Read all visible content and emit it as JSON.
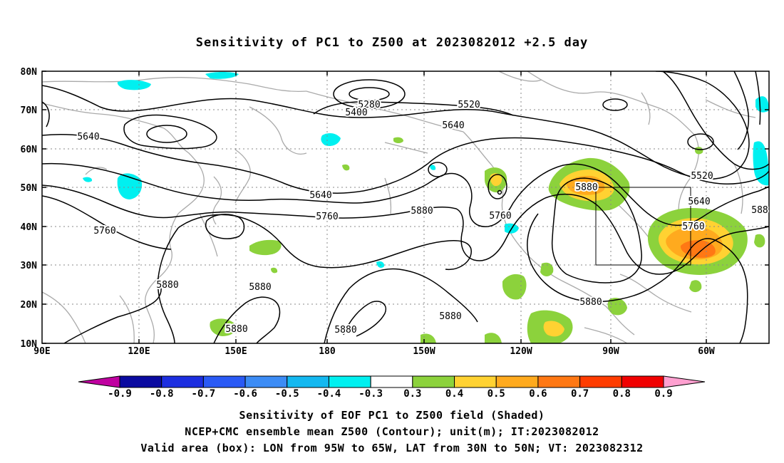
{
  "title": "Sensitivity of PC1 to Z500 at 2023082012 +2.5 day",
  "lat_labels": [
    "80N",
    "70N",
    "60N",
    "50N",
    "40N",
    "30N",
    "20N",
    "10N"
  ],
  "lon_labels": [
    "90E",
    "120E",
    "150E",
    "180",
    "150W",
    "120W",
    "90W",
    "60W"
  ],
  "contour_labels": [
    "5280",
    "5400",
    "5520",
    "5640",
    "5640",
    "5640",
    "5760",
    "5760",
    "5760",
    "5880",
    "5520",
    "5640",
    "5760",
    "5880",
    "5880",
    "5880",
    "5880",
    "5880",
    "5880",
    "5880",
    "5880",
    "5760",
    "588"
  ],
  "colorbar": {
    "labels": [
      "-0.9",
      "-0.8",
      "-0.7",
      "-0.6",
      "-0.5",
      "-0.4",
      "-0.3",
      "0.3",
      "0.4",
      "0.5",
      "0.6",
      "0.7",
      "0.8",
      "0.9"
    ],
    "colors": [
      "#0a0aa0",
      "#1c2ee0",
      "#2a5af5",
      "#3c8cf5",
      "#14b8f0",
      "#00f0f0",
      "#ffffff",
      "#8cd23c",
      "#ffd232",
      "#ffaa1e",
      "#ff7814",
      "#ff3c00",
      "#f00000"
    ],
    "low_end_color": "#c000a0",
    "high_end_color": "#ffa0d0"
  },
  "footer": {
    "line1": "Sensitivity of EOF PC1 to Z500 field (Shaded)",
    "line2": "NCEP+CMC ensemble mean Z500 (Contour); unit(m); IT:2023082012",
    "line3": "Valid area (box): LON from 95W to 65W, LAT from 30N to 50N; VT: 2023082312"
  },
  "colors": {
    "contour": "#000000",
    "coastline": "#aaaaaa",
    "grid": "#888888",
    "positive_low": "#8cd23c",
    "positive_mid": "#ffaa1e",
    "positive_high": "#ff5a14",
    "negative": "#00f0f0"
  }
}
